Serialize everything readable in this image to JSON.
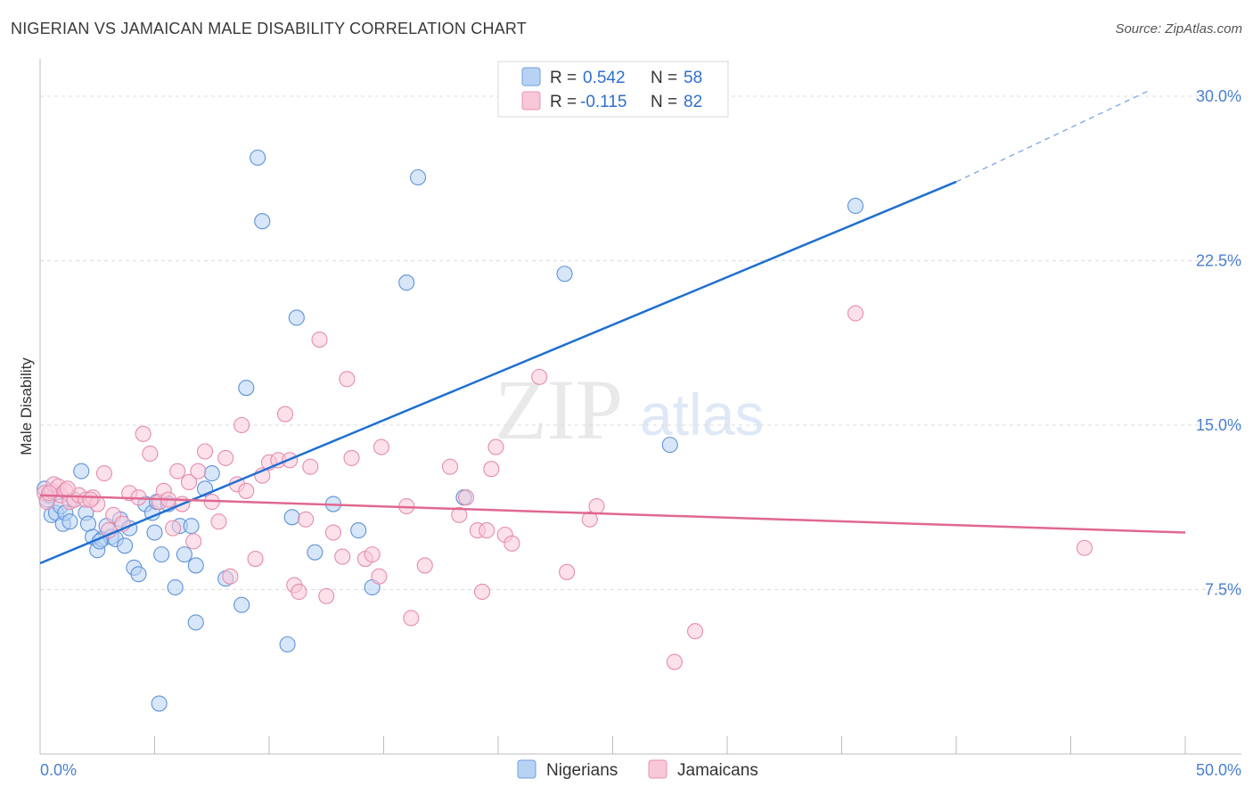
{
  "header": {
    "title": "NIGERIAN VS JAMAICAN MALE DISABILITY CORRELATION CHART",
    "source": "Source: ZipAtlas.com"
  },
  "watermark": {
    "zip": "ZIP",
    "atlas": "atlas"
  },
  "legend": {
    "r_label": "R =",
    "n_label": "N =",
    "rows": [
      {
        "r": "0.542",
        "n": "58"
      },
      {
        "r": "-0.115",
        "n": "82"
      }
    ]
  },
  "colors": {
    "nigerians": "#1f6fd1",
    "jamaicans": "#e06892",
    "tick": "#4a7fd0"
  },
  "chart_data": {
    "type": "scatter",
    "title": "NIGERIAN VS JAMAICAN MALE DISABILITY CORRELATION CHART",
    "xlabel": "",
    "ylabel": "Male Disability",
    "xlim": [
      0,
      50
    ],
    "ylim": [
      0,
      31.3
    ],
    "x_tick_labels": [
      "0.0%",
      "50.0%"
    ],
    "y_ticks": [
      7.5,
      15.0,
      22.5,
      30.0
    ],
    "y_tick_labels": [
      "7.5%",
      "15.0%",
      "22.5%",
      "30.0%"
    ],
    "grid": "horizontal dashed",
    "legend_position": "top-center",
    "series": [
      {
        "name": "Nigerians",
        "stats": {
          "R": 0.542,
          "N": 58
        },
        "trend": {
          "x0": 0,
          "y0": 8.7,
          "x1": 40,
          "y1": 26.1,
          "dashed_to_x": 48.5,
          "dashed_to_y": 30.3
        },
        "points": [
          [
            0.2,
            12.1
          ],
          [
            0.3,
            11.6
          ],
          [
            0.4,
            11.8
          ],
          [
            0.5,
            10.9
          ],
          [
            0.7,
            11.0
          ],
          [
            0.9,
            11.3
          ],
          [
            1.0,
            10.5
          ],
          [
            1.1,
            11.0
          ],
          [
            1.3,
            10.6
          ],
          [
            1.5,
            11.6
          ],
          [
            2.0,
            11.0
          ],
          [
            2.1,
            10.5
          ],
          [
            2.3,
            9.9
          ],
          [
            2.5,
            9.3
          ],
          [
            2.7,
            9.8
          ],
          [
            2.9,
            10.4
          ],
          [
            3.1,
            9.9
          ],
          [
            3.3,
            9.8
          ],
          [
            3.5,
            10.7
          ],
          [
            3.7,
            9.5
          ],
          [
            3.9,
            10.3
          ],
          [
            4.1,
            8.5
          ],
          [
            4.3,
            8.2
          ],
          [
            4.6,
            11.4
          ],
          [
            4.9,
            11.0
          ],
          [
            5.1,
            11.5
          ],
          [
            5.3,
            9.1
          ],
          [
            5.6,
            11.4
          ],
          [
            5.9,
            7.6
          ],
          [
            6.1,
            10.4
          ],
          [
            6.3,
            9.1
          ],
          [
            6.6,
            10.4
          ],
          [
            6.8,
            6.0
          ],
          [
            7.2,
            12.1
          ],
          [
            7.5,
            12.8
          ],
          [
            8.1,
            8.0
          ],
          [
            8.8,
            6.8
          ],
          [
            9.0,
            16.7
          ],
          [
            9.5,
            27.2
          ],
          [
            9.7,
            24.3
          ],
          [
            10.8,
            5.0
          ],
          [
            11.0,
            10.8
          ],
          [
            11.2,
            19.9
          ],
          [
            12.0,
            9.2
          ],
          [
            12.8,
            11.4
          ],
          [
            13.9,
            10.2
          ],
          [
            14.5,
            7.6
          ],
          [
            16.0,
            21.5
          ],
          [
            16.5,
            26.3
          ],
          [
            18.5,
            11.7
          ],
          [
            22.9,
            21.9
          ],
          [
            27.5,
            14.1
          ],
          [
            35.6,
            25.0
          ],
          [
            1.8,
            12.9
          ],
          [
            5.0,
            10.1
          ],
          [
            2.6,
            9.7
          ],
          [
            6.8,
            8.6
          ],
          [
            5.2,
            2.3
          ]
        ]
      },
      {
        "name": "Jamaicans",
        "stats": {
          "R": -0.115,
          "N": 82
        },
        "trend": {
          "x0": 0,
          "y0": 11.8,
          "x1": 50,
          "y1": 10.1
        },
        "points": [
          [
            0.2,
            11.9
          ],
          [
            0.3,
            11.5
          ],
          [
            0.5,
            12.0
          ],
          [
            0.6,
            12.3
          ],
          [
            0.8,
            12.2
          ],
          [
            0.9,
            11.8
          ],
          [
            1.1,
            12.0
          ],
          [
            1.3,
            11.5
          ],
          [
            1.5,
            11.6
          ],
          [
            1.7,
            11.8
          ],
          [
            2.0,
            11.6
          ],
          [
            2.3,
            11.7
          ],
          [
            2.5,
            11.4
          ],
          [
            2.8,
            12.8
          ],
          [
            3.0,
            10.2
          ],
          [
            3.2,
            10.9
          ],
          [
            3.6,
            10.5
          ],
          [
            3.9,
            11.9
          ],
          [
            4.3,
            11.7
          ],
          [
            4.5,
            14.6
          ],
          [
            4.8,
            13.7
          ],
          [
            5.2,
            11.5
          ],
          [
            5.4,
            12.0
          ],
          [
            5.6,
            11.6
          ],
          [
            5.8,
            10.3
          ],
          [
            6.0,
            12.9
          ],
          [
            6.2,
            11.4
          ],
          [
            6.5,
            12.4
          ],
          [
            6.7,
            9.7
          ],
          [
            6.9,
            12.9
          ],
          [
            7.2,
            13.8
          ],
          [
            7.5,
            11.5
          ],
          [
            7.8,
            10.6
          ],
          [
            8.1,
            13.5
          ],
          [
            8.3,
            8.1
          ],
          [
            8.6,
            12.3
          ],
          [
            8.8,
            15.0
          ],
          [
            9.0,
            12.0
          ],
          [
            9.4,
            8.9
          ],
          [
            9.7,
            12.7
          ],
          [
            10.0,
            13.3
          ],
          [
            10.4,
            13.4
          ],
          [
            10.7,
            15.5
          ],
          [
            10.9,
            13.4
          ],
          [
            11.1,
            7.7
          ],
          [
            11.3,
            7.4
          ],
          [
            11.6,
            10.7
          ],
          [
            11.8,
            13.1
          ],
          [
            12.2,
            18.9
          ],
          [
            12.5,
            7.2
          ],
          [
            12.8,
            10.1
          ],
          [
            13.2,
            9.0
          ],
          [
            13.4,
            17.1
          ],
          [
            13.6,
            13.5
          ],
          [
            14.2,
            8.9
          ],
          [
            14.5,
            9.1
          ],
          [
            14.8,
            8.1
          ],
          [
            14.9,
            14.0
          ],
          [
            16.0,
            11.3
          ],
          [
            16.2,
            6.2
          ],
          [
            16.8,
            8.6
          ],
          [
            17.9,
            13.1
          ],
          [
            18.3,
            10.9
          ],
          [
            18.6,
            11.7
          ],
          [
            19.1,
            10.2
          ],
          [
            19.3,
            7.4
          ],
          [
            19.5,
            10.2
          ],
          [
            19.7,
            13.0
          ],
          [
            19.9,
            14.0
          ],
          [
            20.3,
            10.0
          ],
          [
            20.6,
            9.6
          ],
          [
            21.8,
            17.2
          ],
          [
            23.0,
            8.3
          ],
          [
            24.0,
            10.7
          ],
          [
            24.3,
            11.3
          ],
          [
            27.7,
            4.2
          ],
          [
            28.6,
            5.6
          ],
          [
            35.6,
            20.1
          ],
          [
            45.6,
            9.4
          ],
          [
            0.4,
            11.9
          ],
          [
            1.2,
            12.1
          ],
          [
            2.2,
            11.6
          ]
        ]
      }
    ]
  },
  "bottom_legend": {
    "items": [
      {
        "label": "Nigerians"
      },
      {
        "label": "Jamaicans"
      }
    ]
  }
}
